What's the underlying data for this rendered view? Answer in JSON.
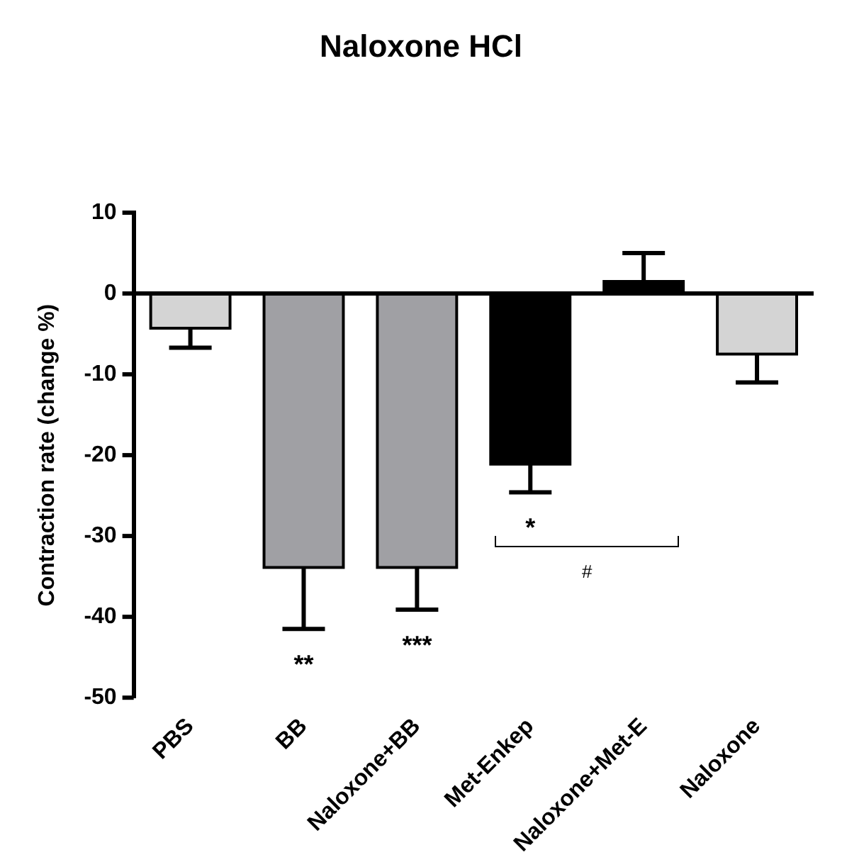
{
  "chart_data": {
    "type": "bar",
    "title": "Naloxone HCl",
    "ylabel": "Contraction rate (change %)",
    "categories": [
      "PBS",
      "BB",
      "Naloxone+BB",
      "Met-Enkep",
      "Naloxone+Met-E",
      "Naloxone"
    ],
    "values": [
      -4.3,
      -33.9,
      -33.9,
      -21.1,
      1.5,
      -7.5
    ],
    "colors": [
      "#d4d4d4",
      "#a0a0a4",
      "#a0a0a4",
      "#000000",
      "#000000",
      "#d4d4d4"
    ],
    "errors": [
      [
        -6.7,
        -4.3
      ],
      [
        -41.5,
        -33.9
      ],
      [
        -39.1,
        -33.9
      ],
      [
        -24.6,
        -21.1
      ],
      [
        1.5,
        5
      ],
      [
        -11,
        -7.5
      ]
    ],
    "ylim": [
      -50,
      10
    ],
    "yticks": [
      -50,
      -40,
      -30,
      -20,
      -10,
      0,
      10
    ],
    "legend": false,
    "annotations": [
      "**",
      "***",
      "*",
      "#"
    ]
  }
}
